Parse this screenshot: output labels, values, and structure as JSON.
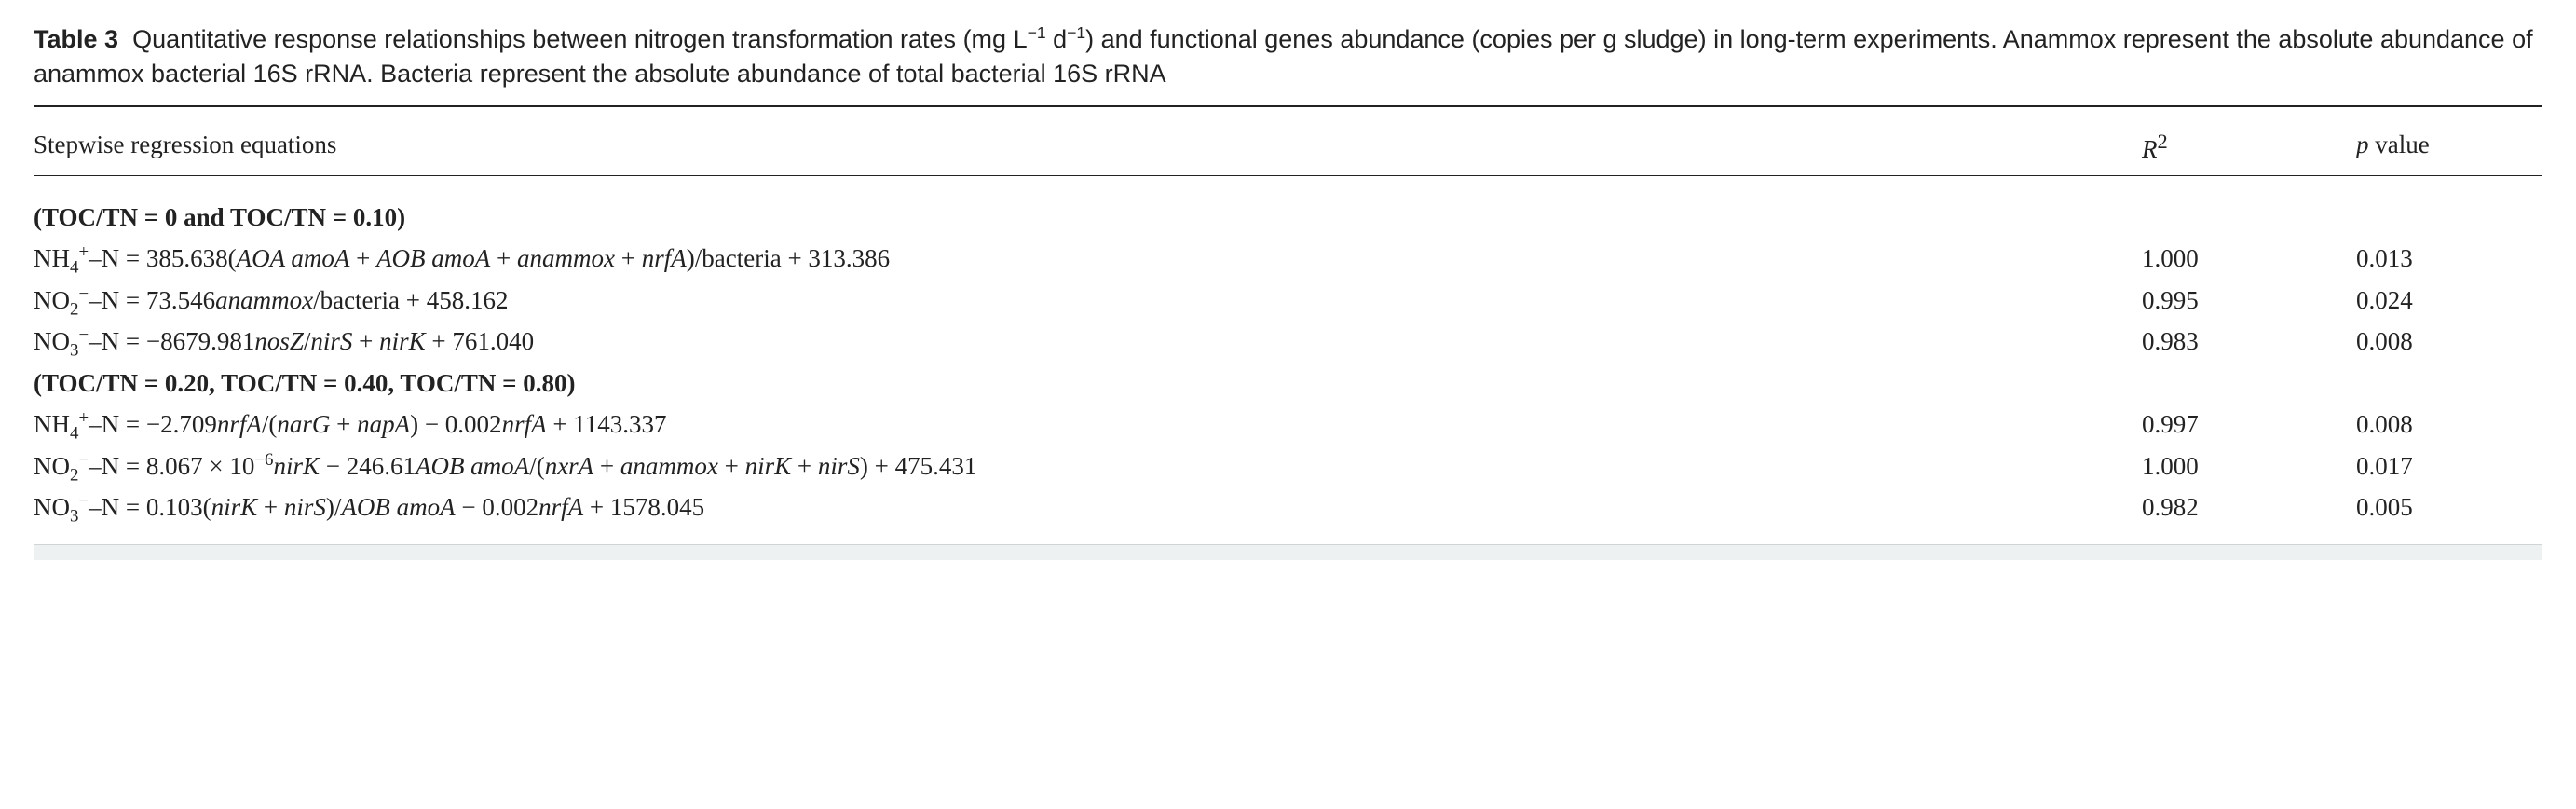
{
  "caption": {
    "label": "Table 3",
    "text_before_units": "Quantitative response relationships between nitrogen transformation rates (mg L",
    "unit_sup1": "−1",
    "unit_mid": " d",
    "unit_sup2": "−1",
    "text_after_units": ") and functional genes abundance (copies per g sludge) in long-term experiments. Anammox represent the absolute abundance of anammox bacterial 16S rRNA. Bacteria represent the absolute abundance of total bacterial 16S rRNA"
  },
  "headers": {
    "eq": "Stepwise regression equations",
    "r2_prefix": "R",
    "r2_sup": "2",
    "p_prefix": "p",
    "p_rest": " value"
  },
  "section1": {
    "label": "(TOC/TN = 0 and TOC/TN = 0.10)",
    "rows": [
      {
        "lhs_species": "NH4+",
        "eq_html": " = 385.638(<span class='gene'>AOA amoA</span> + <span class='gene'>AOB amoA</span> + <span class='gene'>anammox</span> + <span class='gene'>nrfA</span>)/bacteria + 313.386",
        "r2": "1.000",
        "p": "0.013"
      },
      {
        "lhs_species": "NO2-",
        "eq_html": " = 73.546<span class='gene'>anammox</span>/bacteria + 458.162",
        "r2": "0.995",
        "p": "0.024"
      },
      {
        "lhs_species": "NO3-",
        "eq_html": " = −8679.981<span class='gene'>nosZ</span>/<span class='gene'>nirS</span> + <span class='gene'>nirK</span> + 761.040",
        "r2": "0.983",
        "p": "0.008"
      }
    ]
  },
  "section2": {
    "label": "(TOC/TN = 0.20, TOC/TN = 0.40, TOC/TN = 0.80)",
    "rows": [
      {
        "lhs_species": "NH4+",
        "eq_html": " = −2.709<span class='gene'>nrfA</span>/(<span class='gene'>narG</span> + <span class='gene'>napA</span>) − 0.002<span class='gene'>nrfA</span> + 1143.337",
        "r2": "0.997",
        "p": "0.008"
      },
      {
        "lhs_species": "NO2-",
        "eq_html": " = 8.067 × 10<sup>−6</sup><span class='gene'>nirK</span> − 246.61<span class='gene'>AOB amoA</span>/(<span class='gene'>nxrA</span> + <span class='gene'>anammox</span> + <span class='gene'>nirK</span> + <span class='gene'>nirS</span>) + 475.431",
        "r2": "1.000",
        "p": "0.017"
      },
      {
        "lhs_species": "NO3-",
        "eq_html": " = 0.103(<span class='gene'>nirK</span> + <span class='gene'>nirS</span>)/<span class='gene'>AOB amoA</span> − 0.002<span class='gene'>nrfA</span> + 1578.045",
        "r2": "0.982",
        "p": "0.005"
      }
    ]
  }
}
